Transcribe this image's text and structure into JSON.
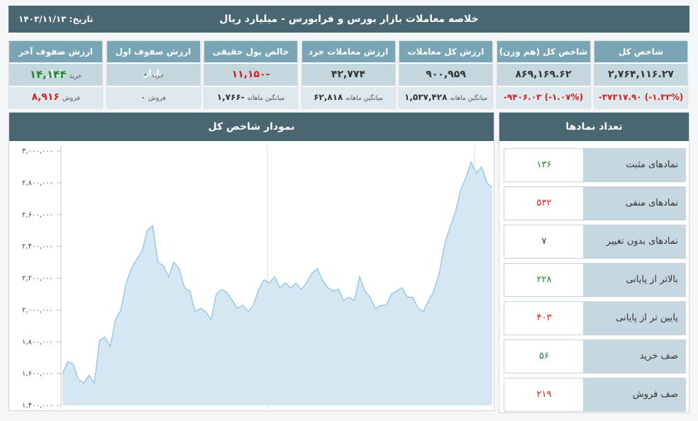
{
  "header": {
    "title": "خلاصه معاملات بازار بورس و فرابورس - میلیارد ریال",
    "date": "تاریخ: ۱۴۰۳/۱۱/۱۳"
  },
  "cards": [
    {
      "title": "شاخص کل",
      "value": "۲,۷۶۴,۱۱۶.۲۷",
      "sub": "-۳۷۳۱۷.۹۰ (-۱.۳۳%)"
    },
    {
      "title": "شاخص کل (هم وزن)",
      "value": "۸۶۹,۱۶۹.۶۲",
      "sub": "-۹۴۰۶.۰۳ (-۱.۰۷%)"
    },
    {
      "title": "ارزش کل معاملات",
      "value": "۹۰۰,۹۵۹",
      "sub_label": "میانگین ماهانه",
      "sub": "۱,۵۳۷,۴۲۸"
    },
    {
      "title": "ارزش معاملات خرد",
      "value": "۴۲,۷۷۴",
      "sub_label": "میانگین ماهانه",
      "sub": "۶۲,۸۱۸"
    },
    {
      "title": "خالص پول حقیقی",
      "value": "-۱۱,۱۵۰",
      "sub_label": "میانگین ماهانه",
      "sub": "-۱,۷۶۶"
    },
    {
      "title": "ارزش صفوف اول بازار",
      "value_label": "خرید",
      "value": "۰",
      "sub_label": "فروش",
      "sub": "۰"
    },
    {
      "title": "ارزش صفوف آخر بازار",
      "value_label": "خرید",
      "value": "۱۴,۱۴۴",
      "sub_label": "فروش",
      "sub": "۸,۹۱۶"
    }
  ],
  "chart_data": {
    "type": "area",
    "title": "نمودار شاخص کل",
    "color": "#8cc0de",
    "fill": "#d4e7f2",
    "categories": [
      null,
      null,
      null,
      null,
      null,
      null,
      null,
      null,
      null,
      null,
      null,
      null,
      null,
      null,
      null,
      null,
      null,
      null,
      null,
      null,
      null,
      null,
      null,
      null,
      null,
      null,
      null,
      null,
      null,
      null,
      null,
      null,
      null,
      null,
      null,
      null,
      null,
      null,
      null,
      null,
      null,
      null,
      null,
      null,
      null,
      null,
      null,
      null,
      null,
      null,
      null,
      null,
      null,
      null,
      null,
      null,
      null,
      null,
      null,
      null,
      null,
      null,
      null,
      null,
      null,
      null,
      null,
      null,
      null,
      null,
      null,
      null,
      null,
      null,
      null,
      null,
      null,
      null,
      null,
      null,
      null,
      null
    ],
    "values": [
      1596000,
      1676000,
      1660000,
      1565000,
      1540000,
      1590000,
      1540000,
      1810000,
      1830000,
      1770000,
      1940000,
      2000000,
      2170000,
      2260000,
      2320000,
      2370000,
      2500000,
      2530000,
      2300000,
      2280000,
      2210000,
      2300000,
      2260000,
      2140000,
      2120000,
      1990000,
      2010000,
      1990000,
      1940000,
      2100000,
      2130000,
      2110000,
      2060000,
      2010000,
      2030000,
      1990000,
      2030000,
      2130000,
      2190000,
      2170000,
      2210000,
      2140000,
      2170000,
      2140000,
      2170000,
      2130000,
      2170000,
      2230000,
      2260000,
      2190000,
      2140000,
      2120000,
      2130000,
      2060000,
      2080000,
      2060000,
      2210000,
      2120000,
      2080000,
      2010000,
      2030000,
      2030000,
      2100000,
      2120000,
      2140000,
      2080000,
      2080000,
      2010000,
      1990000,
      2060000,
      2120000,
      2230000,
      2410000,
      2520000,
      2610000,
      2750000,
      2830000,
      2930000,
      2860000,
      2900000,
      2800000,
      2770000
    ],
    "ylim": [
      1400000,
      3000000
    ],
    "yticks": [
      {
        "value": 1400000,
        "label": "۱,۴۰۰,۰۰۰"
      },
      {
        "value": 1600000,
        "label": "۱,۶۰۰,۰۰۰"
      },
      {
        "value": 1800000,
        "label": "۱,۸۰۰,۰۰۰"
      },
      {
        "value": 2000000,
        "label": "۲,۰۰۰,۰۰۰"
      },
      {
        "value": 2200000,
        "label": "۲,۲۰۰,۰۰۰"
      },
      {
        "value": 2400000,
        "label": "۲,۴۰۰,۰۰۰"
      },
      {
        "value": 2600000,
        "label": "۲,۶۰۰,۰۰۰"
      },
      {
        "value": 2800000,
        "label": "۲,۸۰۰,۰۰۰"
      },
      {
        "value": 3000000,
        "label": "۳,۰۰۰,۰۰۰"
      }
    ]
  },
  "symbols_panel": {
    "title": "تعداد نمادها",
    "rows": [
      {
        "label": "نمادهای مثبت",
        "value": "۱۳۶"
      },
      {
        "label": "نمادهای منفی",
        "value": "۵۳۲"
      },
      {
        "label": "نمادهای بدون تغییر",
        "value": "۷"
      },
      {
        "label": "بالاتر از پایانی",
        "value": "۲۲۸"
      },
      {
        "label": "پایین تر از پایانی",
        "value": "۴۰۳"
      },
      {
        "label": "صف خرید",
        "value": "۵۶"
      },
      {
        "label": "صف فروش",
        "value": "۲۱۹"
      }
    ]
  }
}
